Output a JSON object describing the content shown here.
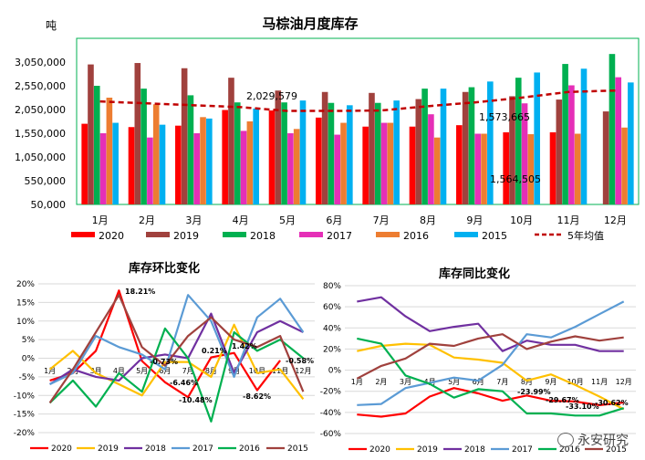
{
  "chart_data": [
    {
      "type": "bar",
      "title": "马棕油月度库存",
      "ylabel": "吨",
      "ylim": [
        50000,
        3550000
      ],
      "ytick_labels": [
        "3,050,000",
        "2,550,000",
        "2,050,000",
        "1,550,000",
        "1,050,000",
        "550,000",
        "50,000"
      ],
      "ytick_values": [
        3050000,
        2550000,
        2050000,
        1550000,
        1050000,
        550000,
        50000
      ],
      "categories": [
        "1月",
        "2月",
        "3月",
        "4月",
        "5月",
        "6月",
        "7月",
        "8月",
        "9月",
        "10月",
        "11月",
        "12月"
      ],
      "series": [
        {
          "name": "2020",
          "color": "#ff0000",
          "values": [
            1750000,
            1680000,
            1710000,
            2040000,
            2030000,
            1880000,
            1690000,
            1690000,
            1720000,
            1570000,
            1570000,
            null
          ]
        },
        {
          "name": "2019",
          "color": "#a0413d",
          "values": [
            3000000,
            3030000,
            2920000,
            2720000,
            2450000,
            2420000,
            2400000,
            2270000,
            2420000,
            2330000,
            2260000,
            2010000
          ]
        },
        {
          "name": "2018",
          "color": "#00b050",
          "values": [
            2550000,
            2490000,
            2350000,
            2200000,
            2200000,
            2190000,
            2190000,
            2490000,
            2520000,
            2720000,
            3010000,
            3220000
          ]
        },
        {
          "name": "2017",
          "color": "#e52fb7",
          "values": [
            1550000,
            1460000,
            1550000,
            1600000,
            1550000,
            1520000,
            1770000,
            1950000,
            1540000,
            2180000,
            2560000,
            2730000
          ]
        },
        {
          "name": "2016",
          "color": "#ed7d31",
          "values": [
            2300000,
            2160000,
            1890000,
            1800000,
            1640000,
            1770000,
            1770000,
            1460000,
            1540000,
            1530000,
            1540000,
            1670000
          ]
        },
        {
          "name": "2015",
          "color": "#00b0f0",
          "values": [
            1770000,
            1730000,
            1860000,
            2070000,
            2240000,
            2140000,
            2240000,
            2490000,
            2640000,
            2830000,
            2910000,
            2620000
          ]
        }
      ],
      "average_line": {
        "name": "5年均值",
        "color": "#c00000",
        "values": [
          2220000,
          2180000,
          2140000,
          2100000,
          2020000,
          2020000,
          2030000,
          2120000,
          2200000,
          2300000,
          2420000,
          2450000
        ]
      },
      "annotations": [
        "2,029,579",
        "1,573,665",
        "1,564,505"
      ],
      "legend": "bottom"
    },
    {
      "type": "line",
      "title": "库存环比变化",
      "ylim": [
        -0.2,
        0.2
      ],
      "ytick_labels": [
        "20%",
        "15%",
        "10%",
        "5%",
        "0%",
        "-5%",
        "-10%",
        "-15%",
        "-20%"
      ],
      "categories": [
        "1月",
        "2月",
        "3月",
        "4月",
        "5月",
        "6月",
        "7月",
        "8月",
        "9月",
        "10月",
        "11月",
        "12月"
      ],
      "series": [
        {
          "name": "2020",
          "color": "#ff0000",
          "values": [
            -0.06,
            -0.04,
            0.02,
            0.1821,
            -0.0073,
            -0.0646,
            -0.1048,
            0.0021,
            0.0142,
            -0.0862,
            -0.0058,
            null
          ]
        },
        {
          "name": "2019",
          "color": "#ffc000",
          "values": [
            -0.03,
            0.02,
            -0.04,
            -0.07,
            -0.1,
            -0.01,
            -0.01,
            -0.05,
            0.09,
            -0.04,
            -0.03,
            -0.11
          ]
        },
        {
          "name": "2018",
          "color": "#7030a0",
          "values": [
            -0.07,
            -0.03,
            -0.05,
            -0.06,
            0.0,
            0.01,
            0.0,
            0.12,
            -0.04,
            0.07,
            0.1,
            0.07
          ]
        },
        {
          "name": "2017",
          "color": "#5b9bd5",
          "values": [
            -0.07,
            -0.04,
            0.06,
            0.03,
            0.01,
            -0.03,
            0.17,
            0.1,
            -0.05,
            0.11,
            0.16,
            0.07
          ]
        },
        {
          "name": "2016",
          "color": "#00b050",
          "values": [
            -0.12,
            -0.06,
            -0.13,
            -0.04,
            -0.09,
            0.08,
            0.0,
            -0.17,
            0.07,
            0.02,
            0.05,
            0.0
          ]
        },
        {
          "name": "2015",
          "color": "#a0413d",
          "values": [
            -0.12,
            -0.03,
            0.07,
            0.17,
            0.03,
            -0.02,
            0.06,
            0.11,
            0.05,
            0.03,
            0.06,
            -0.09
          ]
        }
      ],
      "annotations": [
        "18.21%",
        "-0.73%",
        "-6.46%",
        "0.21%",
        "1.42%",
        "-10.48%",
        "-8.62%",
        "-0.58%"
      ],
      "legend": "bottom"
    },
    {
      "type": "line",
      "title": "库存同比变化",
      "ylim": [
        -0.6,
        0.8
      ],
      "ytick_labels": [
        "80%",
        "60%",
        "40%",
        "20%",
        "0%",
        "-20%",
        "-40%",
        "-60%"
      ],
      "categories": [
        "1月",
        "2月",
        "3月",
        "4月",
        "5月",
        "6月",
        "7月",
        "8月",
        "9月",
        "10月",
        "11月",
        "12月"
      ],
      "series": [
        {
          "name": "2020",
          "color": "#ff0000",
          "values": [
            -0.42,
            -0.44,
            -0.41,
            -0.25,
            -0.17,
            -0.22,
            -0.29,
            -0.2399,
            -0.29,
            -0.2967,
            -0.331,
            -0.3062
          ]
        },
        {
          "name": "2019",
          "color": "#ffc000",
          "values": [
            0.18,
            0.23,
            0.25,
            0.24,
            0.12,
            0.1,
            0.07,
            -0.1,
            -0.04,
            -0.14,
            -0.25,
            -0.37
          ]
        },
        {
          "name": "2018",
          "color": "#7030a0",
          "values": [
            0.65,
            0.69,
            0.51,
            0.37,
            0.41,
            0.44,
            0.18,
            0.28,
            0.24,
            0.24,
            0.18,
            0.18
          ]
        },
        {
          "name": "2017",
          "color": "#5b9bd5",
          "values": [
            -0.33,
            -0.32,
            -0.17,
            -0.12,
            -0.07,
            -0.1,
            0.05,
            0.34,
            0.31,
            0.41,
            0.53,
            0.65
          ]
        },
        {
          "name": "2016",
          "color": "#00b050",
          "values": [
            0.3,
            0.25,
            -0.05,
            -0.13,
            -0.26,
            -0.18,
            -0.2,
            -0.41,
            -0.41,
            -0.43,
            -0.43,
            -0.36
          ]
        },
        {
          "name": "2015",
          "color": "#a0413d",
          "values": [
            -0.08,
            0.04,
            0.11,
            0.25,
            0.23,
            0.3,
            0.34,
            0.2,
            0.27,
            0.32,
            0.28,
            0.31
          ]
        }
      ],
      "annotations": [
        "-23.99%",
        "-29.67%",
        "-33.10%",
        "-30.62%"
      ],
      "legend": "bottom"
    }
  ],
  "watermark": "永安研究"
}
